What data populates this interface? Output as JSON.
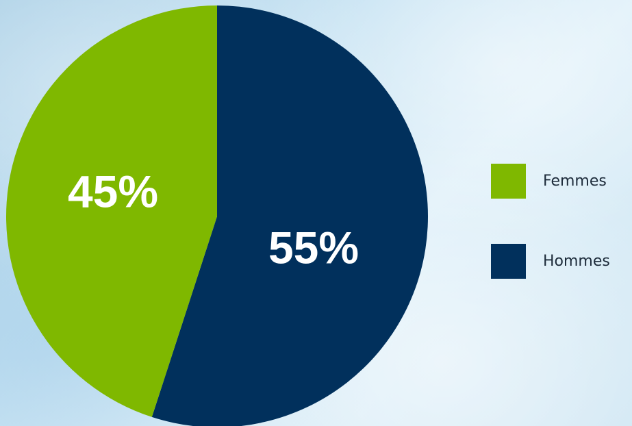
{
  "chart_data": {
    "type": "pie",
    "title": "",
    "categories": [
      "Femmes",
      "Hommes"
    ],
    "values": [
      45,
      55
    ],
    "value_labels": [
      "45%",
      "55%"
    ],
    "colors": [
      "#7fb800",
      "#01305c"
    ],
    "legend_position": "right"
  }
}
